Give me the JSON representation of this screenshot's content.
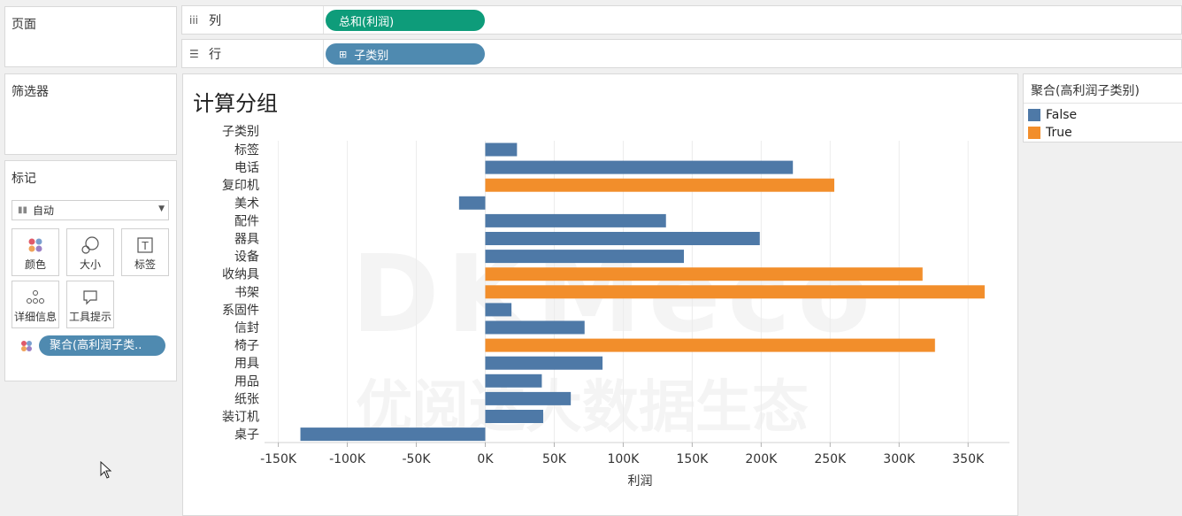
{
  "left_panels": {
    "pages_title": "页面",
    "filters_title": "筛选器",
    "marks_title": "标记",
    "mark_type": "自动",
    "mark_buttons": [
      {
        "label": "颜色",
        "icon": "color-dots-icon"
      },
      {
        "label": "大小",
        "icon": "size-shapes-icon"
      },
      {
        "label": "标签",
        "icon": "text-label-icon"
      },
      {
        "label": "详细信息",
        "icon": "detail-dots-icon"
      },
      {
        "label": "工具提示",
        "icon": "tooltip-bubble-icon"
      }
    ],
    "color_field": "聚合(高利润子类.."
  },
  "shelves": {
    "columns_label": "列",
    "columns_pill": "总和(利润)",
    "rows_label": "行",
    "rows_pill": "子类别",
    "columns_pill_color": "#0e9c7a",
    "rows_pill_color": "#4f8ab0"
  },
  "viz": {
    "title": "计算分组",
    "watermark_top": "DKMeco",
    "watermark_bottom": "优阅达大数据生态"
  },
  "legend": {
    "title": "聚合(高利润子类别)",
    "items": [
      {
        "label": "False",
        "color": "#4e79a7"
      },
      {
        "label": "True",
        "color": "#f28e2b"
      }
    ]
  },
  "chart_data": {
    "type": "bar",
    "orientation": "horizontal",
    "row_header": "子类别",
    "xlabel": "利润",
    "xlim": [
      -160000,
      380000
    ],
    "xticks": [
      -150000,
      -100000,
      -50000,
      0,
      50000,
      100000,
      150000,
      200000,
      250000,
      300000,
      350000
    ],
    "xtick_labels": [
      "-150K",
      "-100K",
      "-50K",
      "0K",
      "50K",
      "100K",
      "150K",
      "200K",
      "250K",
      "300K",
      "350K"
    ],
    "grid": true,
    "categories": [
      "标签",
      "电话",
      "复印机",
      "美术",
      "配件",
      "器具",
      "设备",
      "收纳具",
      "书架",
      "系固件",
      "信封",
      "椅子",
      "用具",
      "用品",
      "纸张",
      "装订机",
      "桌子"
    ],
    "values": [
      23000,
      223000,
      253000,
      -19000,
      131000,
      199000,
      144000,
      317000,
      362000,
      19000,
      72000,
      326000,
      85000,
      41000,
      62000,
      42000,
      -134000
    ],
    "groups": [
      false,
      false,
      true,
      false,
      false,
      false,
      false,
      true,
      true,
      false,
      false,
      true,
      false,
      false,
      false,
      false,
      false
    ],
    "colors": {
      "false": "#4e79a7",
      "true": "#f28e2b"
    }
  }
}
